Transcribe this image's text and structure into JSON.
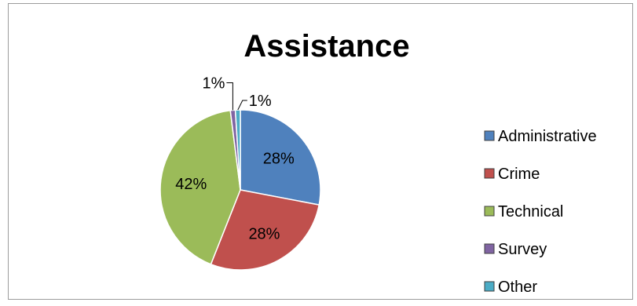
{
  "chart_data": {
    "type": "pie",
    "title": "Assistance",
    "slices": [
      {
        "label": "Administrative",
        "value": 28,
        "data_label": "28%",
        "color": "#4F81BD"
      },
      {
        "label": "Crime",
        "value": 28,
        "data_label": "28%",
        "color": "#C0504D"
      },
      {
        "label": "Technical",
        "value": 42,
        "data_label": "42%",
        "color": "#9BBB59"
      },
      {
        "label": "Survey",
        "value": 1,
        "data_label": "1%",
        "color": "#8064A2"
      },
      {
        "label": "Other",
        "value": 1,
        "data_label": "1%",
        "color": "#4BACC6"
      }
    ],
    "legend_position": "right"
  }
}
